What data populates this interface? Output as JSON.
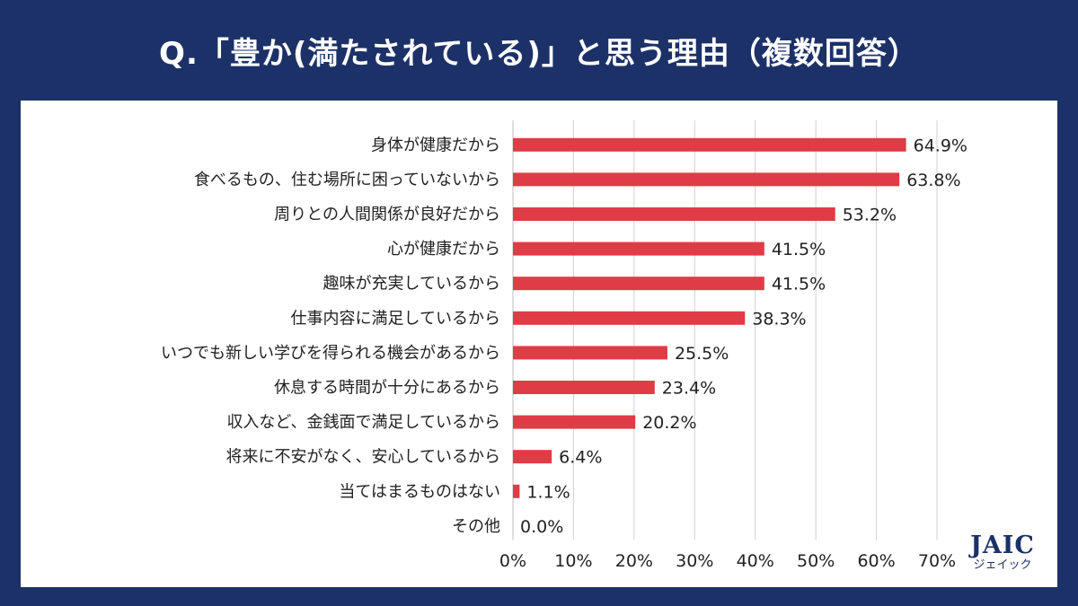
{
  "title": "Q.「豊か(満たされている)」と思う理由（複数回答）",
  "logo": {
    "main": "JAIC",
    "sub": "ジェイック"
  },
  "colors": {
    "background": "#1c3168",
    "bar": "#e03c45",
    "grid": "#d0d0d0",
    "axis": "#bfbfbf"
  },
  "chart_data": {
    "type": "bar",
    "orientation": "horizontal",
    "title": "Q.「豊か(満たされている)」と思う理由（複数回答）",
    "xlabel": "",
    "ylabel": "",
    "xlim": [
      0,
      70
    ],
    "ticks": [
      0,
      10,
      20,
      30,
      40,
      50,
      60,
      70
    ],
    "tick_labels": [
      "0%",
      "10%",
      "20%",
      "30%",
      "40%",
      "50%",
      "60%",
      "70%"
    ],
    "grid": true,
    "categories": [
      "身体が健康だから",
      "食べるもの、住む場所に困っていないから",
      "周りとの人間関係が良好だから",
      "心が健康だから",
      "趣味が充実しているから",
      "仕事内容に満足しているから",
      "いつでも新しい学びを得られる機会があるから",
      "休息する時間が十分にあるから",
      "収入など、金銭面で満足しているから",
      "将来に不安がなく、安心しているから",
      "当てはまるものはない",
      "その他"
    ],
    "values": [
      64.9,
      63.8,
      53.2,
      41.5,
      41.5,
      38.3,
      25.5,
      23.4,
      20.2,
      6.4,
      1.1,
      0.0
    ],
    "value_labels": [
      "64.9%",
      "63.8%",
      "53.2%",
      "41.5%",
      "41.5%",
      "38.3%",
      "25.5%",
      "23.4%",
      "20.2%",
      "6.4%",
      "1.1%",
      "0.0%"
    ]
  }
}
